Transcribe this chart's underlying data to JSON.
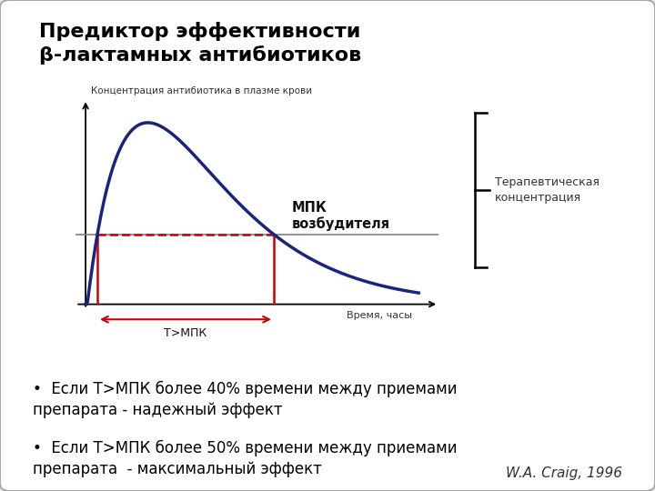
{
  "title_line1": "Предиктор эффективности",
  "title_line2": "β-лактамных антибиотиков",
  "bg_color": "#e8e8e8",
  "slide_bg": "#ffffff",
  "curve_color": "#1a237e",
  "mic_line_color": "#808080",
  "mic_dashed_color": "#cc0000",
  "red_vline_color": "#cc0000",
  "ylabel_text": "Концентрация антибиотика в плазме крови",
  "xlabel_text": "Время, часы",
  "mic_label": "МПК\nвозбудителя",
  "tmic_label": "Т>МПК",
  "therapeutic_label": "Терапевтическая\nконцентрация",
  "bullet1": "Если Т>МПК более 40% времени между приемами\nпрепарата - надежный эффект",
  "bullet2": "Если Т>МПК более 50% времени между приемами\nпрепарата  - максимальный эффект",
  "citation": "W.A. Craig, 1996",
  "title_fontsize": 16,
  "body_fontsize": 12,
  "citation_fontsize": 11
}
